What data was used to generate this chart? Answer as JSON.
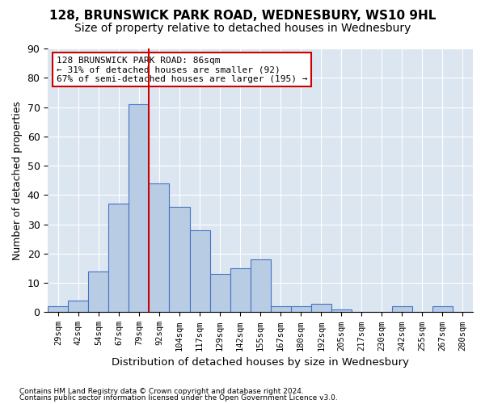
{
  "title": "128, BRUNSWICK PARK ROAD, WEDNESBURY, WS10 9HL",
  "subtitle": "Size of property relative to detached houses in Wednesbury",
  "xlabel": "Distribution of detached houses by size in Wednesbury",
  "ylabel": "Number of detached properties",
  "bin_labels": [
    "29sqm",
    "42sqm",
    "54sqm",
    "67sqm",
    "79sqm",
    "92sqm",
    "104sqm",
    "117sqm",
    "129sqm",
    "142sqm",
    "155sqm",
    "167sqm",
    "180sqm",
    "192sqm",
    "205sqm",
    "217sqm",
    "230sqm",
    "242sqm",
    "255sqm",
    "267sqm",
    "280sqm"
  ],
  "bar_values": [
    2,
    4,
    14,
    37,
    71,
    44,
    36,
    28,
    13,
    15,
    18,
    2,
    2,
    3,
    1,
    0,
    0,
    2,
    0,
    2,
    0
  ],
  "bar_color": "#b8cce4",
  "bar_edge_color": "#4472c4",
  "red_line_x": 4.5,
  "red_line_color": "#cc0000",
  "annotation_line1": "128 BRUNSWICK PARK ROAD: 86sqm",
  "annotation_line2": "← 31% of detached houses are smaller (92)",
  "annotation_line3": "67% of semi-detached houses are larger (195) →",
  "annotation_box_color": "#ffffff",
  "annotation_box_edge": "#cc0000",
  "footnote1": "Contains HM Land Registry data © Crown copyright and database right 2024.",
  "footnote2": "Contains public sector information licensed under the Open Government Licence v3.0.",
  "ylim": [
    0,
    90
  ],
  "yticks": [
    0,
    10,
    20,
    30,
    40,
    50,
    60,
    70,
    80,
    90
  ],
  "background_color": "#dce6f1",
  "title_fontsize": 11,
  "subtitle_fontsize": 10
}
